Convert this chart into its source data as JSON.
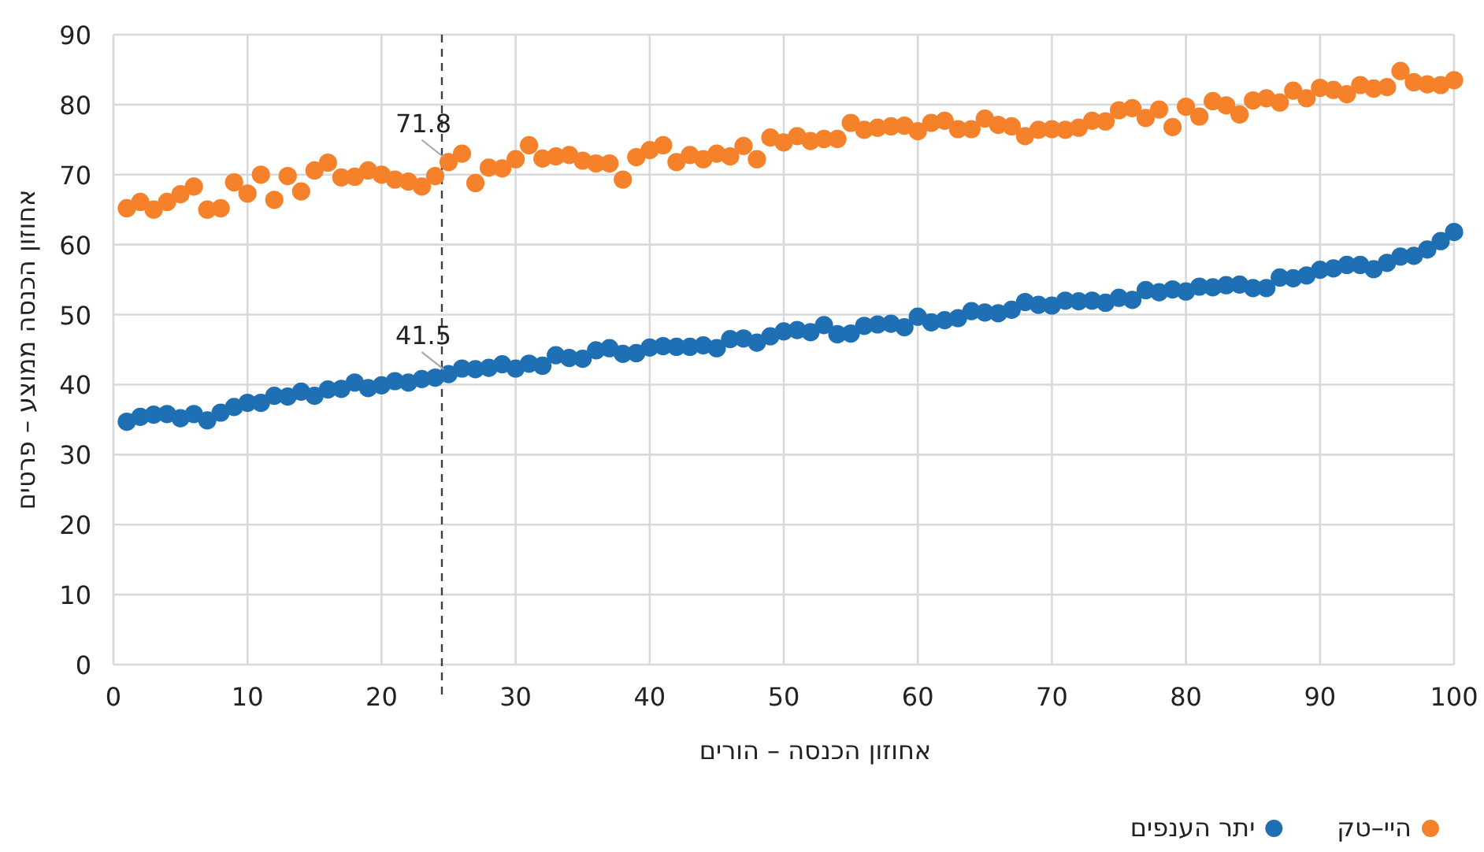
{
  "chart_data": {
    "type": "scatter",
    "xlabel": "אחוזון הכנסה – הורים",
    "ylabel": "אחוזון הכנסה ממוצע – פרטים",
    "xlim": [
      0,
      100
    ],
    "ylim": [
      0,
      90
    ],
    "xticks": [
      0,
      10,
      20,
      30,
      40,
      50,
      60,
      70,
      80,
      90,
      100
    ],
    "yticks": [
      0,
      10,
      20,
      30,
      40,
      50,
      60,
      70,
      80,
      90
    ],
    "grid": true,
    "legend": "bottom",
    "marker": "circle",
    "x": [
      1,
      2,
      3,
      4,
      5,
      6,
      7,
      8,
      9,
      10,
      11,
      12,
      13,
      14,
      15,
      16,
      17,
      18,
      19,
      20,
      21,
      22,
      23,
      24,
      25,
      26,
      27,
      28,
      29,
      30,
      31,
      32,
      33,
      34,
      35,
      36,
      37,
      38,
      39,
      40,
      41,
      42,
      43,
      44,
      45,
      46,
      47,
      48,
      49,
      50,
      51,
      52,
      53,
      54,
      55,
      56,
      57,
      58,
      59,
      60,
      61,
      62,
      63,
      64,
      65,
      66,
      67,
      68,
      69,
      70,
      71,
      72,
      73,
      74,
      75,
      76,
      77,
      78,
      79,
      80,
      81,
      82,
      83,
      84,
      85,
      86,
      87,
      88,
      89,
      90,
      91,
      92,
      93,
      94,
      95,
      96,
      97,
      98,
      99,
      100
    ],
    "series": [
      {
        "name": "היי–טק",
        "color": "#f5822a",
        "values": [
          65.2,
          66.1,
          65,
          66.1,
          67.2,
          68.3,
          65,
          65.2,
          68.9,
          67.3,
          70,
          66.4,
          69.8,
          67.6,
          70.6,
          71.7,
          69.6,
          69.7,
          70.6,
          70,
          69.3,
          69,
          68.3,
          69.8,
          71.8,
          73,
          68.8,
          71,
          70.9,
          72.2,
          74.2,
          72.3,
          72.6,
          72.8,
          72,
          71.6,
          71.6,
          69.3,
          72.5,
          73.5,
          74.2,
          71.8,
          72.8,
          72.2,
          73,
          72.6,
          74.1,
          72.2,
          75.3,
          74.6,
          75.5,
          74.8,
          75.1,
          75.1,
          77.4,
          76.4,
          76.7,
          76.9,
          77,
          76.2,
          77.4,
          77.7,
          76.5,
          76.5,
          78,
          77.1,
          76.9,
          75.5,
          76.4,
          76.5,
          76.4,
          76.7,
          77.7,
          77.6,
          79.2,
          79.5,
          78.1,
          79.3,
          76.8,
          79.7,
          78.3,
          80.5,
          79.9,
          78.6,
          80.6,
          80.9,
          80.3,
          82,
          80.9,
          82.4,
          82.1,
          81.5,
          82.8,
          82.3,
          82.5,
          84.8,
          83.2,
          82.9,
          82.8,
          83.5
        ]
      },
      {
        "name": "יתר הענפים",
        "color": "#1f6fb5",
        "values": [
          34.7,
          35.4,
          35.7,
          35.8,
          35.2,
          35.8,
          34.9,
          36,
          36.8,
          37.4,
          37.4,
          38.4,
          38.3,
          39,
          38.4,
          39.3,
          39.4,
          40.3,
          39.5,
          39.9,
          40.5,
          40.3,
          40.8,
          41,
          41.5,
          42.3,
          42.2,
          42.4,
          42.9,
          42.3,
          43,
          42.7,
          44.2,
          43.8,
          43.7,
          44.9,
          45.2,
          44.4,
          44.5,
          45.3,
          45.5,
          45.4,
          45.4,
          45.6,
          45.2,
          46.5,
          46.6,
          46,
          46.9,
          47.6,
          47.8,
          47.5,
          48.5,
          47.2,
          47.3,
          48.4,
          48.6,
          48.7,
          48.2,
          49.7,
          48.9,
          49.2,
          49.5,
          50.5,
          50.3,
          50.2,
          50.7,
          51.8,
          51.4,
          51.3,
          52,
          51.9,
          52,
          51.7,
          52.4,
          52.1,
          53.5,
          53.2,
          53.6,
          53.3,
          54,
          53.9,
          54.2,
          54.3,
          53.8,
          53.8,
          55.3,
          55.2,
          55.6,
          56.4,
          56.6,
          57.1,
          57.1,
          56.5,
          57.4,
          58.3,
          58.4,
          59.3,
          60.5,
          61.8
        ]
      }
    ],
    "ref_lines": [
      {
        "axis": "x",
        "value": 24.5,
        "label": null,
        "color": "#404040",
        "line_style": "dashed"
      }
    ],
    "annotations": [
      {
        "text": "71.8",
        "x": 25,
        "y": 71.8
      },
      {
        "text": "41.5",
        "x": 25,
        "y": 41.5
      }
    ]
  }
}
